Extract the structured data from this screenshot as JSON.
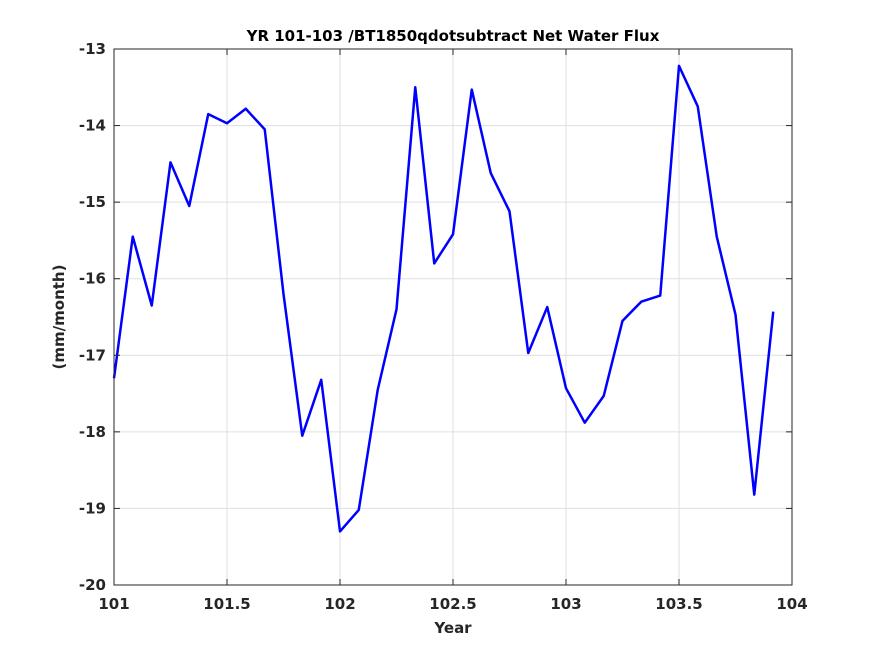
{
  "chart_data": {
    "type": "line",
    "title": "YR 101-103 /BT1850qdotsubtract Net Water Flux",
    "xlabel": "Year",
    "ylabel": "(mm/month)",
    "xlim": [
      101,
      104
    ],
    "ylim": [
      -20,
      -13
    ],
    "xticks": [
      101,
      101.5,
      102,
      102.5,
      103,
      103.5,
      104
    ],
    "xtick_labels": [
      "101",
      "101.5",
      "102",
      "102.5",
      "103",
      "103.5",
      "104"
    ],
    "yticks": [
      -20,
      -19,
      -18,
      -17,
      -16,
      -15,
      -14,
      -13
    ],
    "ytick_labels": [
      "-20",
      "-19",
      "-18",
      "-17",
      "-16",
      "-15",
      "-14",
      "-13"
    ],
    "grid": true,
    "series": [
      {
        "color": "#0000ff",
        "x": [
          101.0,
          101.083,
          101.167,
          101.25,
          101.333,
          101.417,
          101.5,
          101.583,
          101.667,
          101.75,
          101.833,
          101.917,
          102.0,
          102.083,
          102.167,
          102.25,
          102.333,
          102.417,
          102.5,
          102.583,
          102.667,
          102.75,
          102.833,
          102.917,
          103.0,
          103.083,
          103.167,
          103.25,
          103.333,
          103.417,
          103.5,
          103.583,
          103.667,
          103.75,
          103.833,
          103.917
        ],
        "y": [
          -17.3,
          -15.45,
          -16.35,
          -14.48,
          -15.05,
          -13.85,
          -13.97,
          -13.78,
          -14.05,
          -16.2,
          -18.05,
          -17.32,
          -19.3,
          -19.02,
          -17.45,
          -16.4,
          -13.5,
          -15.8,
          -15.42,
          -13.53,
          -14.62,
          -15.12,
          -16.97,
          -16.37,
          -17.43,
          -17.88,
          -17.53,
          -16.55,
          -16.3,
          -16.22,
          -13.22,
          -13.75,
          -15.45,
          -16.47,
          -18.82,
          -16.43
        ]
      }
    ]
  }
}
